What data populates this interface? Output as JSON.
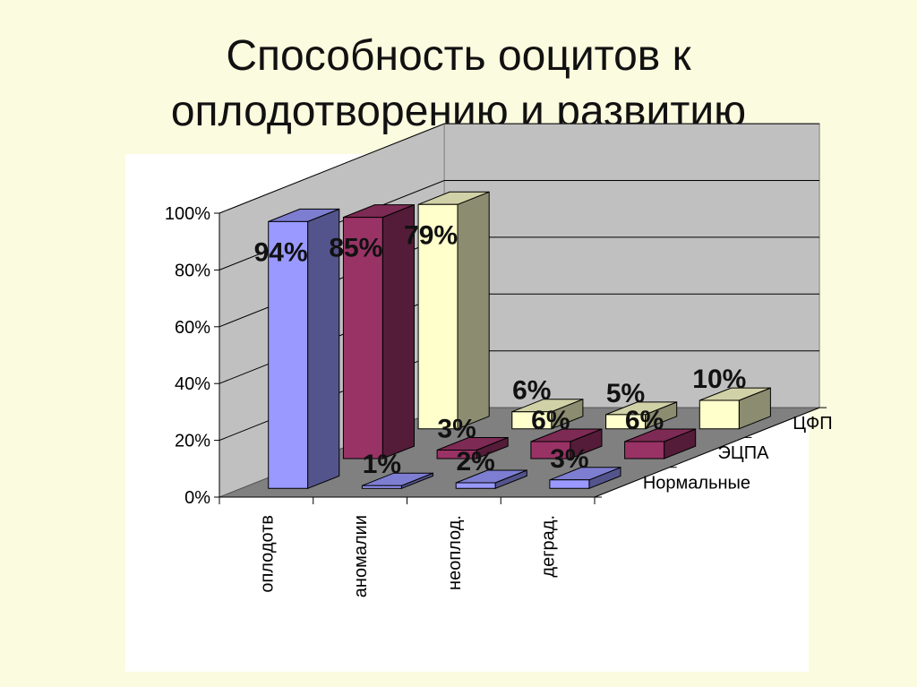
{
  "slide": {
    "title_line1": "Способность ооцитов к",
    "title_line2": "оплодотворению и развитию"
  },
  "chart_data": {
    "type": "bar",
    "title": "",
    "xlabel": "",
    "ylabel": "",
    "ylim": [
      0,
      100
    ],
    "yticks": [
      "0%",
      "20%",
      "40%",
      "60%",
      "80%",
      "100%"
    ],
    "categories": [
      "оплодотв",
      "аномалии",
      "неоплод.",
      "деград."
    ],
    "series": [
      {
        "name": "Нормальные",
        "values": [
          94,
          1,
          2,
          3
        ],
        "labels": [
          "94%",
          "1%",
          "2%",
          "3%"
        ],
        "color": "#9999ff"
      },
      {
        "name": "ЭЦПА",
        "values": [
          85,
          3,
          6,
          6
        ],
        "labels": [
          "85%",
          "3%",
          "6%",
          "6%"
        ],
        "color": "#993366"
      },
      {
        "name": "ЦФП",
        "values": [
          79,
          6,
          5,
          10
        ],
        "labels": [
          "79%",
          "6%",
          "5%",
          "10%"
        ],
        "color": "#ffffcc"
      }
    ],
    "grid": true,
    "view": "3d-clustered"
  }
}
